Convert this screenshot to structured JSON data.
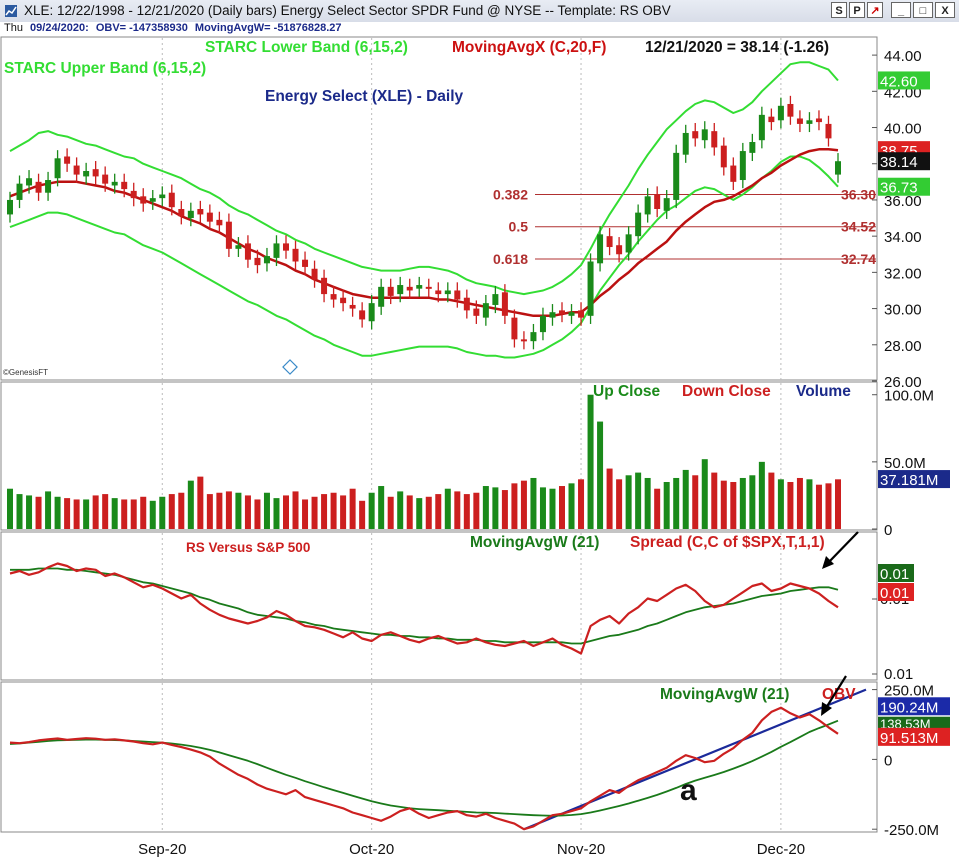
{
  "window": {
    "title": "XLE:  12/22/1998 - 12/21/2020  (Daily bars)   Energy Select Sector SPDR Fund @ NYSE  --  Template: RS OBV",
    "buttons": [
      "S",
      "P",
      "↗",
      "_",
      "□",
      "X"
    ]
  },
  "infobar": {
    "day": "Thu",
    "date": "09/24/2020:",
    "obv": "OBV= -147358930",
    "mavg": "MovingAvgW= -51876828.27"
  },
  "colors": {
    "up": "#1a8a1a",
    "down": "#cc1f1f",
    "band": "#33dd33",
    "ma": "#bb1111",
    "blue": "#1b2a8a"
  },
  "chart_data": [
    {
      "type": "candlestick",
      "title": "Energy Select (XLE) - Daily",
      "legend": [
        "STARC Lower Band (6,15,2)",
        "MovingAvgX (C,20,F)",
        "STARC Upper Band (6,15,2)"
      ],
      "last_quote": "12/21/2020 = 38.14 (-1.26)",
      "y_ticks": [
        "44.00",
        "42.00",
        "40.00",
        "38.00",
        "36.00",
        "34.00",
        "32.00",
        "30.00",
        "28.00",
        "26.00"
      ],
      "ylim": [
        26,
        45
      ],
      "price_tags": {
        "upper": "42.60",
        "ma": "38.75",
        "close": "38.14",
        "lower": "36.73"
      },
      "fib_levels": [
        {
          "ratio": "0.382",
          "price": "36.30"
        },
        {
          "ratio": "0.5",
          "price": "34.52"
        },
        {
          "ratio": "0.618",
          "price": "32.74"
        }
      ],
      "x_labels": [
        "Sep-20",
        "Oct-20",
        "Nov-20",
        "Dec-20"
      ],
      "close": [
        36.0,
        36.9,
        37.2,
        36.4,
        37.1,
        38.3,
        38.0,
        37.4,
        37.6,
        37.3,
        36.9,
        37.0,
        36.6,
        36.1,
        35.8,
        36.1,
        36.3,
        35.6,
        35.1,
        35.4,
        35.2,
        34.8,
        34.6,
        33.3,
        33.5,
        32.7,
        32.4,
        32.9,
        33.6,
        33.2,
        32.6,
        32.3,
        31.6,
        30.8,
        30.5,
        30.3,
        30.0,
        29.4,
        30.3,
        31.2,
        30.7,
        31.3,
        31.0,
        31.3,
        31.1,
        30.8,
        31.0,
        30.5,
        29.9,
        29.6,
        30.3,
        30.8,
        29.6,
        28.3,
        28.2,
        28.7,
        29.6,
        29.8,
        29.7,
        29.8,
        29.5,
        32.6,
        34.1,
        33.4,
        33.0,
        34.1,
        35.3,
        36.2,
        35.5,
        36.1,
        38.6,
        39.7,
        39.4,
        39.9,
        38.9,
        37.8,
        37.0,
        38.7,
        39.2,
        40.7,
        40.3,
        41.2,
        40.6,
        40.2,
        40.4,
        40.3,
        39.4,
        38.14
      ],
      "open": [
        35.2,
        36.0,
        36.8,
        37.0,
        36.4,
        37.2,
        38.4,
        37.9,
        37.3,
        37.7,
        37.4,
        36.8,
        37.0,
        36.5,
        36.2,
        35.9,
        36.1,
        36.4,
        35.5,
        35.0,
        35.5,
        35.3,
        34.9,
        34.8,
        33.3,
        33.6,
        32.8,
        32.5,
        32.8,
        33.6,
        33.3,
        32.7,
        32.2,
        31.7,
        30.8,
        30.6,
        30.2,
        29.9,
        29.3,
        30.1,
        31.2,
        30.8,
        31.2,
        31.1,
        31.2,
        31.0,
        30.8,
        31.0,
        30.6,
        30.0,
        29.5,
        30.2,
        30.9,
        29.5,
        28.3,
        28.2,
        28.7,
        29.5,
        29.9,
        29.6,
        29.9,
        29.6,
        32.5,
        34.0,
        33.5,
        33.1,
        34.0,
        35.2,
        36.3,
        35.4,
        36.0,
        38.5,
        39.8,
        39.3,
        39.8,
        39.0,
        37.9,
        37.1,
        38.6,
        39.3,
        40.6,
        40.4,
        41.3,
        40.5,
        40.2,
        40.5,
        40.2,
        37.4
      ],
      "upper": [
        38.7,
        39.0,
        39.3,
        39.7,
        39.8,
        39.6,
        39.5,
        39.3,
        39.1,
        39.0,
        38.8,
        38.6,
        38.4,
        38.3,
        38.0,
        37.8,
        37.6,
        37.4,
        37.2,
        36.9,
        36.6,
        36.4,
        36.1,
        35.7,
        35.4,
        35.2,
        34.9,
        34.6,
        34.3,
        34.1,
        33.8,
        33.6,
        33.3,
        33.1,
        32.9,
        32.7,
        32.5,
        32.3,
        32.2,
        32.1,
        32.1,
        32.1,
        32.2,
        32.3,
        32.3,
        32.2,
        32.1,
        31.9,
        31.6,
        31.4,
        31.3,
        31.2,
        31.0,
        30.9,
        30.8,
        30.9,
        31.0,
        31.2,
        31.5,
        31.9,
        32.4,
        33.3,
        34.3,
        35.2,
        36.0,
        36.8,
        37.7,
        38.5,
        39.2,
        39.9,
        40.4,
        40.9,
        41.3,
        41.5,
        41.4,
        41.1,
        40.8,
        41.0,
        41.4,
        42.0,
        42.5,
        43.0,
        43.5,
        43.6,
        43.6,
        43.4,
        43.2,
        42.6
      ],
      "lower": [
        34.5,
        34.7,
        34.9,
        35.1,
        35.3,
        35.3,
        35.2,
        35.0,
        34.8,
        34.6,
        34.4,
        34.2,
        34.1,
        33.8,
        33.5,
        33.3,
        33.1,
        32.8,
        32.5,
        32.2,
        31.9,
        31.6,
        31.3,
        31.0,
        30.7,
        30.4,
        30.2,
        29.9,
        29.6,
        29.4,
        29.1,
        28.8,
        28.5,
        28.3,
        28.0,
        27.8,
        27.6,
        27.4,
        27.4,
        27.5,
        27.6,
        27.7,
        27.8,
        27.9,
        27.9,
        27.9,
        27.9,
        27.8,
        27.6,
        27.5,
        27.4,
        27.4,
        27.3,
        27.3,
        27.4,
        27.5,
        27.7,
        28.0,
        28.3,
        28.7,
        29.2,
        30.1,
        31.0,
        31.7,
        32.4,
        33.0,
        33.7,
        34.3,
        34.9,
        35.4,
        35.7,
        36.1,
        36.5,
        36.7,
        36.6,
        36.3,
        36.0,
        36.3,
        36.7,
        37.2,
        37.6,
        38.1,
        38.4,
        38.4,
        38.2,
        37.8,
        37.3,
        36.73
      ],
      "ma": [
        36.2,
        36.4,
        36.6,
        36.8,
        36.9,
        37.0,
        37.0,
        37.0,
        36.9,
        36.8,
        36.7,
        36.5,
        36.4,
        36.2,
        36.0,
        35.8,
        35.6,
        35.4,
        35.1,
        34.9,
        34.7,
        34.4,
        34.2,
        33.9,
        33.6,
        33.3,
        33.1,
        32.8,
        32.6,
        32.4,
        32.1,
        31.9,
        31.6,
        31.4,
        31.2,
        31.0,
        30.8,
        30.7,
        30.6,
        30.6,
        30.6,
        30.6,
        30.6,
        30.6,
        30.6,
        30.5,
        30.5,
        30.4,
        30.3,
        30.2,
        30.1,
        30.0,
        29.9,
        29.8,
        29.7,
        29.6,
        29.6,
        29.6,
        29.7,
        29.8,
        29.8,
        30.2,
        30.7,
        31.1,
        31.6,
        32.0,
        32.5,
        32.9,
        33.3,
        33.7,
        34.3,
        34.8,
        35.2,
        35.6,
        35.9,
        36.0,
        36.2,
        36.5,
        36.8,
        37.2,
        37.5,
        37.9,
        38.2,
        38.5,
        38.7,
        38.8,
        38.8,
        38.75
      ]
    },
    {
      "type": "bar",
      "legend": [
        "Up Close",
        "Down Close",
        "Volume"
      ],
      "y_ticks": [
        "100.0M",
        "50.0M",
        "0"
      ],
      "ylim": [
        0,
        105
      ],
      "last_value_tag": "37.181M",
      "values": [
        30,
        26,
        25,
        24,
        28,
        24,
        23,
        22,
        22,
        25,
        26,
        23,
        22,
        22,
        24,
        21,
        24,
        26,
        27,
        36,
        39,
        26,
        27,
        28,
        27,
        25,
        22,
        27,
        23,
        25,
        28,
        22,
        24,
        26,
        27,
        25,
        30,
        21,
        27,
        32,
        24,
        28,
        25,
        23,
        24,
        26,
        30,
        28,
        26,
        27,
        32,
        31,
        29,
        34,
        36,
        38,
        31,
        30,
        32,
        34,
        37,
        100,
        80,
        45,
        37,
        40,
        42,
        38,
        30,
        35,
        38,
        44,
        40,
        52,
        42,
        36,
        35,
        38,
        40,
        50,
        42,
        37,
        35,
        38,
        37,
        33,
        34,
        37
      ]
    },
    {
      "type": "line",
      "title": "RS Versus S&P 500",
      "legend": [
        "MovingAvgW (21)",
        "Spread (C,C of $SPX,T,1,1)"
      ],
      "y_ticks": [
        "0.01",
        "0.01"
      ],
      "value_tags": {
        "avg": "0.01",
        "spread": "0.01"
      },
      "ylim": [
        0,
        100
      ],
      "spread": [
        82,
        84,
        81,
        83,
        87,
        90,
        88,
        84,
        86,
        85,
        80,
        82,
        79,
        75,
        71,
        73,
        70,
        66,
        62,
        65,
        58,
        53,
        49,
        46,
        44,
        42,
        44,
        47,
        52,
        49,
        44,
        40,
        39,
        37,
        34,
        31,
        35,
        30,
        28,
        33,
        35,
        32,
        29,
        27,
        30,
        32,
        29,
        26,
        27,
        30,
        27,
        25,
        24,
        26,
        28,
        24,
        27,
        30,
        25,
        22,
        18,
        40,
        45,
        48,
        42,
        50,
        55,
        62,
        60,
        65,
        70,
        73,
        68,
        60,
        55,
        57,
        62,
        67,
        72,
        74,
        68,
        70,
        74,
        72,
        70,
        66,
        60,
        55
      ],
      "avg": [
        85,
        85,
        85,
        86,
        86,
        86,
        85,
        85,
        84,
        83,
        82,
        81,
        79,
        77,
        75,
        74,
        72,
        70,
        68,
        66,
        63,
        61,
        58,
        56,
        54,
        51,
        49,
        48,
        47,
        46,
        44,
        43,
        41,
        40,
        38,
        37,
        36,
        35,
        34,
        33,
        33,
        32,
        32,
        31,
        31,
        30,
        30,
        29,
        29,
        29,
        28,
        28,
        27,
        27,
        27,
        27,
        27,
        27,
        27,
        26,
        26,
        28,
        30,
        32,
        33,
        35,
        37,
        40,
        42,
        45,
        48,
        51,
        53,
        55,
        56,
        57,
        58,
        60,
        62,
        64,
        65,
        66,
        68,
        69,
        70,
        71,
        71,
        69
      ]
    },
    {
      "type": "line",
      "legend": [
        "MovingAvgW (21)",
        "OBV"
      ],
      "y_ticks": [
        "250.0M",
        "0",
        "-250.0M"
      ],
      "ylim": [
        -260,
        270
      ],
      "value_tags": {
        "trend": "190.24M",
        "avg": "138.53M",
        "obv": "91.513M"
      },
      "annotation": "a",
      "obv": [
        60,
        58,
        62,
        68,
        72,
        75,
        70,
        73,
        76,
        74,
        70,
        72,
        68,
        64,
        58,
        54,
        60,
        52,
        44,
        35,
        25,
        10,
        -15,
        -35,
        -55,
        -70,
        -90,
        -105,
        -115,
        -125,
        -110,
        -135,
        -145,
        -155,
        -165,
        -175,
        -190,
        -200,
        -210,
        -220,
        -205,
        -185,
        -175,
        -195,
        -210,
        -200,
        -190,
        -185,
        -200,
        -205,
        -195,
        -210,
        -220,
        -230,
        -250,
        -240,
        -220,
        -200,
        -195,
        -185,
        -175,
        -150,
        -130,
        -110,
        -120,
        -95,
        -75,
        -60,
        -45,
        -30,
        -5,
        15,
        5,
        -10,
        -5,
        20,
        40,
        70,
        95,
        140,
        170,
        185,
        165,
        150,
        162,
        140,
        115,
        91.5
      ],
      "avg": [
        55,
        57,
        60,
        63,
        66,
        68,
        69,
        70,
        71,
        71,
        70,
        69,
        68,
        66,
        64,
        62,
        60,
        57,
        53,
        48,
        42,
        34,
        25,
        15,
        5,
        -5,
        -17,
        -30,
        -43,
        -55,
        -66,
        -78,
        -89,
        -100,
        -110,
        -120,
        -130,
        -140,
        -150,
        -158,
        -165,
        -170,
        -175,
        -178,
        -180,
        -182,
        -184,
        -186,
        -188,
        -190,
        -191,
        -192,
        -194,
        -196,
        -198,
        -200,
        -201,
        -202,
        -201,
        -199,
        -196,
        -190,
        -183,
        -175,
        -167,
        -158,
        -148,
        -138,
        -127,
        -115,
        -102,
        -88,
        -76,
        -66,
        -56,
        -45,
        -33,
        -20,
        -6,
        10,
        27,
        45,
        62,
        80,
        98,
        112,
        125,
        138.5
      ],
      "trend_start": -250,
      "trend_end": 250
    }
  ]
}
